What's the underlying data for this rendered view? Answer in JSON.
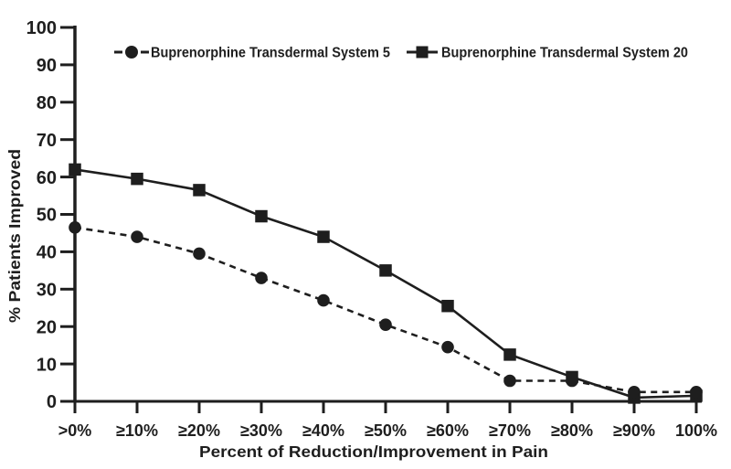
{
  "figure": {
    "background": "#ffffff",
    "ink_color": "#1e1e1e"
  },
  "chart_data": {
    "type": "line",
    "title": "",
    "xlabel": "Percent of Reduction/Improvement in Pain",
    "ylabel": "% Patients Improved",
    "categories": [
      ">0%",
      "≥10%",
      "≥20%",
      "≥30%",
      "≥40%",
      "≥50%",
      "≥60%",
      "≥70%",
      "≥80%",
      "≥90%",
      "100%"
    ],
    "y_ticks": [
      0,
      10,
      20,
      30,
      40,
      50,
      60,
      70,
      80,
      90,
      100
    ],
    "ylim": [
      0,
      100
    ],
    "grid": false,
    "legend_position": "top-inside",
    "series": [
      {
        "name": "Buprenorphine Transdermal System 5",
        "marker": "circle",
        "line_style": "dashed",
        "values": [
          46.5,
          44,
          39.5,
          33,
          27,
          20.5,
          14.5,
          5.5,
          5.5,
          2.5,
          2.5
        ]
      },
      {
        "name": "Buprenorphine Transdermal System 20",
        "marker": "square",
        "line_style": "solid",
        "values": [
          62,
          59.5,
          56.5,
          49.5,
          44,
          35,
          25.5,
          12.5,
          6.5,
          1,
          1.5
        ]
      }
    ]
  }
}
